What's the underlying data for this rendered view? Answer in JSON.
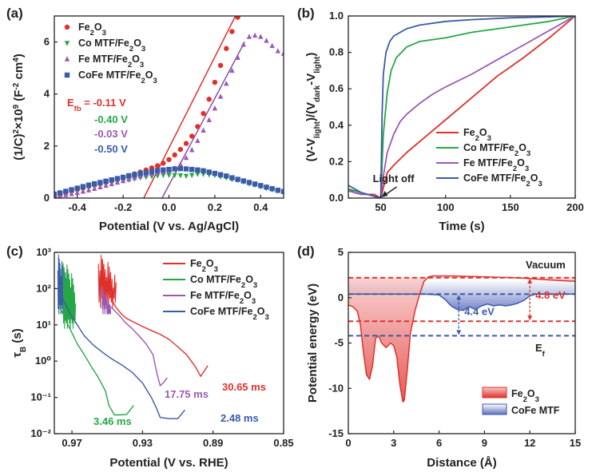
{
  "chart_data": [
    {
      "panel": "(a)",
      "type": "scatter",
      "xlabel": "Potential (V vs. Ag/AgCl)",
      "ylabel": "(1/C)²×10⁹ (F⁻² cm⁴)",
      "xlim": [
        -0.5,
        0.5
      ],
      "ylim": [
        0,
        7
      ],
      "xticks": [
        "-0.4",
        "-0.2",
        "0.0",
        "0.2",
        "0.4"
      ],
      "yticks": [
        "0",
        "2",
        "4",
        "6"
      ],
      "series": [
        {
          "name": "Fe2O3",
          "color": "#e0302a",
          "marker": "circle",
          "x": [
            -0.5,
            -0.475,
            -0.45,
            -0.425,
            -0.4,
            -0.375,
            -0.35,
            -0.325,
            -0.3,
            -0.275,
            -0.25,
            -0.225,
            -0.2,
            -0.175,
            -0.15,
            -0.125,
            -0.1,
            -0.075,
            -0.05,
            -0.025,
            0.0,
            0.025,
            0.05,
            0.075,
            0.1,
            0.125,
            0.15,
            0.175,
            0.2,
            0.225,
            0.25,
            0.275,
            0.3
          ],
          "y": [
            0.05,
            0.12,
            0.2,
            0.27,
            0.33,
            0.38,
            0.45,
            0.5,
            0.55,
            0.6,
            0.66,
            0.72,
            0.79,
            0.86,
            0.93,
            1.0,
            1.08,
            1.16,
            1.24,
            1.34,
            1.48,
            1.66,
            1.87,
            2.1,
            2.38,
            2.75,
            3.25,
            3.8,
            4.45,
            5.1,
            5.75,
            6.4,
            6.95
          ]
        },
        {
          "name": "Co MTF/Fe2O3",
          "color": "#25a745",
          "marker": "triangle-down",
          "x": [
            -0.5,
            -0.475,
            -0.45,
            -0.425,
            -0.4,
            -0.375,
            -0.35,
            -0.325,
            -0.3,
            -0.275,
            -0.25,
            -0.225,
            -0.2,
            -0.175,
            -0.15,
            -0.125,
            -0.1,
            -0.075,
            -0.05,
            -0.025,
            0.0,
            0.025,
            0.05,
            0.075,
            0.1,
            0.125,
            0.15,
            0.175,
            0.2,
            0.225,
            0.25,
            0.275,
            0.3,
            0.325,
            0.35,
            0.375,
            0.4,
            0.425,
            0.45,
            0.475,
            0.5
          ],
          "y": [
            0.1,
            0.15,
            0.2,
            0.25,
            0.3,
            0.35,
            0.4,
            0.45,
            0.5,
            0.54,
            0.58,
            0.62,
            0.66,
            0.7,
            0.74,
            0.78,
            0.81,
            0.84,
            0.86,
            0.88,
            0.88,
            0.88,
            0.87,
            0.85,
            0.88,
            0.92,
            0.92,
            0.9,
            0.88,
            0.82,
            0.78,
            0.72,
            0.68,
            0.62,
            0.55,
            0.5,
            0.44,
            0.38,
            0.32,
            0.28,
            0.25
          ]
        },
        {
          "name": "Fe MTF/Fe2O3",
          "color": "#9b59b6",
          "marker": "triangle-up",
          "x": [
            -0.5,
            -0.475,
            -0.45,
            -0.425,
            -0.4,
            -0.375,
            -0.35,
            -0.325,
            -0.3,
            -0.275,
            -0.25,
            -0.225,
            -0.2,
            -0.175,
            -0.15,
            -0.125,
            -0.1,
            -0.075,
            -0.05,
            -0.025,
            0.0,
            0.025,
            0.05,
            0.075,
            0.1,
            0.125,
            0.15,
            0.175,
            0.2,
            0.225,
            0.25,
            0.275,
            0.3,
            0.325,
            0.35,
            0.375,
            0.4,
            0.425,
            0.45,
            0.475,
            0.5
          ],
          "y": [
            0.05,
            0.08,
            0.12,
            0.16,
            0.2,
            0.25,
            0.3,
            0.36,
            0.42,
            0.48,
            0.54,
            0.6,
            0.66,
            0.72,
            0.78,
            0.84,
            0.9,
            0.95,
            0.98,
            1.0,
            1.05,
            1.15,
            1.3,
            1.55,
            1.85,
            2.2,
            2.6,
            3.0,
            3.45,
            3.9,
            4.4,
            4.9,
            5.4,
            5.9,
            6.2,
            6.25,
            6.2,
            6.05,
            5.85,
            5.65,
            5.55
          ]
        },
        {
          "name": "CoFe MTF/Fe2O3",
          "color": "#3a5ba8",
          "marker": "square",
          "x": [
            -0.5,
            -0.475,
            -0.45,
            -0.425,
            -0.4,
            -0.375,
            -0.35,
            -0.325,
            -0.3,
            -0.275,
            -0.25,
            -0.225,
            -0.2,
            -0.175,
            -0.15,
            -0.125,
            -0.1,
            -0.075,
            -0.05,
            -0.025,
            0.0,
            0.025,
            0.05,
            0.075,
            0.1,
            0.125,
            0.15,
            0.175,
            0.2,
            0.225,
            0.25,
            0.275,
            0.3,
            0.325,
            0.35,
            0.375,
            0.4,
            0.425,
            0.45,
            0.475,
            0.5
          ],
          "y": [
            0.15,
            0.2,
            0.26,
            0.32,
            0.38,
            0.44,
            0.5,
            0.55,
            0.6,
            0.65,
            0.7,
            0.75,
            0.8,
            0.86,
            0.9,
            0.94,
            0.98,
            1.02,
            1.06,
            1.08,
            1.1,
            1.12,
            1.13,
            1.12,
            1.1,
            1.08,
            1.05,
            1.0,
            0.95,
            0.9,
            0.85,
            0.78,
            0.72,
            0.66,
            0.6,
            0.54,
            0.48,
            0.42,
            0.36,
            0.3,
            0.25
          ]
        }
      ],
      "fits": [
        {
          "series": "Fe2O3",
          "color": "#e0302a",
          "x": [
            -0.11,
            0.29
          ],
          "y": [
            0,
            7
          ]
        },
        {
          "series": "Fe MTF/Fe2O3",
          "color": "#8a4fa0",
          "x": [
            -0.03,
            0.33
          ],
          "y": [
            0,
            6
          ]
        }
      ],
      "annotations": [
        {
          "text": "Efb = -0.11 V",
          "prefix": "E",
          "sub": "fb",
          "rest": " = -0.11 V",
          "color": "#e0302a"
        },
        {
          "text": "-0.40 V",
          "color": "#25a745"
        },
        {
          "text": "-0.03 V",
          "color": "#9b59b6"
        },
        {
          "text": "-0.50 V",
          "color": "#3a5ba8"
        }
      ],
      "legend_position": "top-left"
    },
    {
      "panel": "(b)",
      "type": "line",
      "xlabel": "Time (s)",
      "ylabel": "(V-Vlight)/(Vdark-Vlight)",
      "xlim": [
        25,
        200
      ],
      "ylim": [
        0,
        1.0
      ],
      "xticks": [
        "50",
        "100",
        "150",
        "200"
      ],
      "yticks": [
        "0.0",
        "0.2",
        "0.4",
        "0.6",
        "0.8",
        "1.0"
      ],
      "annotation": "Light off",
      "series": [
        {
          "name": "Fe2O3",
          "color": "#e0302a",
          "x": [
            25,
            30,
            35,
            40,
            45,
            50,
            55,
            60,
            70,
            80,
            90,
            100,
            120,
            140,
            160,
            180,
            200
          ],
          "y": [
            0.05,
            0.03,
            0.02,
            0.02,
            0.02,
            0.0,
            0.14,
            0.18,
            0.25,
            0.31,
            0.37,
            0.43,
            0.55,
            0.67,
            0.77,
            0.88,
            1.0
          ]
        },
        {
          "name": "Co MTF/Fe2O3",
          "color": "#25a745",
          "x": [
            25,
            30,
            35,
            40,
            45,
            50,
            52,
            55,
            58,
            62,
            66,
            70,
            80,
            90,
            100,
            120,
            140,
            160,
            180,
            200
          ],
          "y": [
            0.05,
            0.04,
            0.03,
            0.02,
            0.01,
            0.0,
            0.35,
            0.58,
            0.7,
            0.77,
            0.8,
            0.83,
            0.86,
            0.87,
            0.88,
            0.91,
            0.93,
            0.95,
            0.97,
            1.0
          ]
        },
        {
          "name": "Fe MTF/Fe2O3",
          "color": "#9b59b6",
          "x": [
            25,
            30,
            35,
            40,
            45,
            50,
            52,
            55,
            60,
            65,
            70,
            80,
            90,
            100,
            120,
            140,
            160,
            180,
            200
          ],
          "y": [
            0.04,
            0.03,
            0.02,
            0.02,
            0.01,
            0.0,
            0.12,
            0.25,
            0.35,
            0.42,
            0.46,
            0.52,
            0.57,
            0.61,
            0.68,
            0.76,
            0.84,
            0.92,
            1.0
          ]
        },
        {
          "name": "CoFe MTF/Fe2O3",
          "color": "#3a5ba8",
          "x": [
            25,
            30,
            35,
            40,
            45,
            50,
            51,
            52,
            54,
            57,
            60,
            65,
            70,
            80,
            100,
            120,
            150,
            180,
            200
          ],
          "y": [
            0.07,
            0.05,
            0.03,
            0.02,
            0.01,
            0.0,
            0.45,
            0.68,
            0.8,
            0.86,
            0.89,
            0.91,
            0.93,
            0.95,
            0.97,
            0.98,
            0.99,
            0.995,
            1.0
          ]
        }
      ],
      "legend_position": "bottom-right"
    },
    {
      "panel": "(c)",
      "type": "line",
      "yscale": "log",
      "xlabel": "Potential (V vs. RHE)",
      "ylabel": "τB (s)",
      "xlim": [
        0.98,
        0.85
      ],
      "ylim": [
        0.01,
        1000
      ],
      "xticks": [
        "0.97",
        "0.93",
        "0.89",
        "0.85"
      ],
      "yticks": [
        "10⁻²",
        "10⁻¹",
        "10⁰",
        "10¹",
        "10²",
        "10³"
      ],
      "series": [
        {
          "name": "Fe2O3",
          "color": "#e0302a",
          "label": "30.65 ms",
          "x": [
            0.953,
            0.951,
            0.949,
            0.947,
            0.945,
            0.942,
            0.939,
            0.935,
            0.93,
            0.925,
            0.92,
            0.915,
            0.91,
            0.905,
            0.9,
            0.897,
            0.893
          ],
          "y": [
            600,
            150,
            80,
            45,
            30,
            20,
            15,
            12,
            9,
            7,
            5.5,
            4,
            2.5,
            1.5,
            0.7,
            0.38,
            0.75
          ]
        },
        {
          "name": "Co MTF/Fe2O3",
          "color": "#25a745",
          "label": "3.46 ms",
          "x": [
            0.977,
            0.975,
            0.973,
            0.97,
            0.967,
            0.963,
            0.959,
            0.955,
            0.951,
            0.949,
            0.946,
            0.943,
            0.939,
            0.935
          ],
          "y": [
            30,
            20,
            12,
            6,
            3,
            1.5,
            0.7,
            0.35,
            0.15,
            0.06,
            0.033,
            0.033,
            0.034,
            0.06
          ]
        },
        {
          "name": "Fe MTF/Fe2O3",
          "color": "#9b59b6",
          "label": "17.75 ms",
          "x": [
            0.952,
            0.949,
            0.946,
            0.943,
            0.94,
            0.936,
            0.932,
            0.928,
            0.924,
            0.922,
            0.92,
            0.918,
            0.916
          ],
          "y": [
            60,
            35,
            25,
            18,
            12,
            8,
            5,
            3,
            1.5,
            0.5,
            0.21,
            0.26,
            0.35
          ]
        },
        {
          "name": "CoFe MTF/Fe2O3",
          "color": "#3a5ba8",
          "label": "2.48 ms",
          "x": [
            0.977,
            0.974,
            0.971,
            0.967,
            0.963,
            0.958,
            0.953,
            0.948,
            0.942,
            0.936,
            0.93,
            0.925,
            0.922,
            0.92,
            0.915,
            0.91,
            0.906
          ],
          "y": [
            80,
            40,
            20,
            10,
            5,
            2.8,
            1.8,
            1.2,
            0.8,
            0.5,
            0.25,
            0.1,
            0.05,
            0.028,
            0.026,
            0.026,
            0.045
          ]
        }
      ],
      "legend_position": "top-right"
    },
    {
      "panel": "(d)",
      "type": "area",
      "xlabel": "Distance (Å)",
      "ylabel": "Potential energy (eV)",
      "xlim": [
        0,
        15
      ],
      "ylim": [
        -15,
        5
      ],
      "xticks": [
        "0",
        "3",
        "6",
        "9",
        "12",
        "15"
      ],
      "yticks": [
        "-15",
        "-10",
        "-5",
        "0",
        "5"
      ],
      "series": [
        {
          "name": "Fe2O3",
          "color": "#e0302a",
          "x": [
            0,
            0.3,
            0.6,
            0.8,
            1.0,
            1.2,
            1.4,
            1.6,
            1.8,
            2.0,
            2.2,
            2.5,
            2.8,
            3.0,
            3.2,
            3.4,
            3.6,
            3.7,
            3.9,
            4.1,
            4.4,
            4.7,
            5.0,
            5.3,
            5.6,
            6.0,
            7,
            8,
            9,
            10,
            11,
            12,
            13,
            14,
            15
          ],
          "y": [
            -0.8,
            -1.0,
            -1.5,
            -3.0,
            -6.0,
            -8.5,
            -9.0,
            -7.5,
            -4.5,
            -4.2,
            -5.0,
            -5.5,
            -5.0,
            -5.3,
            -6.5,
            -9.5,
            -11.5,
            -11.3,
            -8.0,
            -4.0,
            -1.5,
            0.3,
            1.8,
            2.3,
            2.4,
            2.4,
            2.4,
            2.35,
            2.3,
            2.25,
            2.2,
            2.1,
            2.0,
            1.9,
            1.8
          ]
        },
        {
          "name": "CoFe MTF",
          "color": "#3a5ba8",
          "x": [
            0,
            1,
            2,
            3,
            4,
            5,
            6,
            6.4,
            6.8,
            7.2,
            7.6,
            8.0,
            8.4,
            8.8,
            9.2,
            9.6,
            10.0,
            10.4,
            10.8,
            11.2,
            11.6,
            12.0,
            12.4,
            13,
            14,
            15
          ],
          "y": [
            0.4,
            0.4,
            0.4,
            0.4,
            0.4,
            0.4,
            0.3,
            -0.2,
            -0.9,
            -1.3,
            -1.4,
            -1.0,
            -1.3,
            -0.9,
            -0.7,
            -0.9,
            -0.8,
            -0.9,
            -0.8,
            -0.6,
            -0.3,
            0.2,
            0.4,
            0.4,
            0.4,
            0.4
          ]
        }
      ],
      "levels": [
        {
          "name": "Fe2O3 vacuum",
          "y": 2.2,
          "color": "#e0302a"
        },
        {
          "name": "CoFe vacuum",
          "y": 0.4,
          "color": "#3a5ba8"
        },
        {
          "name": "Fe2O3 Ef",
          "y": -2.6,
          "color": "#e0302a"
        },
        {
          "name": "CoFe Ef",
          "y": -4.2,
          "color": "#3a5ba8"
        }
      ],
      "annotations": {
        "vacuum": "Vacuum",
        "ef": "Ef",
        "ef_main": "E",
        "ef_sub": "f",
        "phi_cofe": "4.4 eV",
        "phi_fe2o3": "4.8 eV"
      },
      "legend_position": "bottom-right"
    }
  ],
  "legends": {
    "a": [
      "Fe2O3",
      "Co MTF/Fe2O3",
      "Fe MTF/Fe2O3",
      "CoFe MTF/Fe2O3"
    ],
    "b": [
      "Fe2O3",
      "Co MTF/Fe2O3",
      "Fe MTF/Fe2O3",
      "CoFe MTF/Fe2O3"
    ],
    "c": [
      "Fe2O3",
      "Co MTF/Fe2O3",
      "Fe MTF/Fe2O3",
      "CoFe MTF/Fe2O3"
    ],
    "d": [
      "Fe2O3",
      "CoFe MTF"
    ]
  }
}
